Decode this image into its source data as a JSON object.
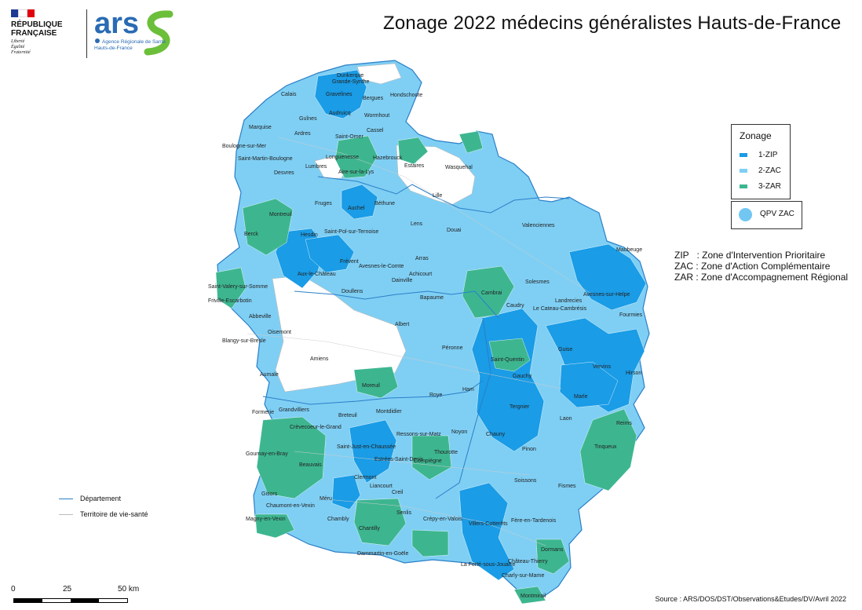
{
  "title": "Zonage 2022 médecins généralistes Hauts-de-France",
  "logos": {
    "republique": [
      "RÉPUBLIQUE",
      "FRANÇAISE"
    ],
    "motto": [
      "Liberté",
      "Égalité",
      "Fraternité"
    ],
    "ars": "ars",
    "ars_sub": [
      "Agence Régionale de Santé",
      "Hauts-de-France"
    ]
  },
  "legend": {
    "title": "Zonage",
    "items": [
      {
        "label": "1-ZIP",
        "color": "#1a9ce6"
      },
      {
        "label": "2-ZAC",
        "color": "#7fcff4"
      },
      {
        "label": "3-ZAR",
        "color": "#3db690"
      }
    ],
    "qpv": {
      "label": "QPV ZAC",
      "color": "#72c7f2"
    }
  },
  "definitions": [
    "ZIP   : Zone d'Intervention Prioritaire",
    "ZAC : Zone d'Action Complémentaire",
    "ZAR : Zone d'Accompagnement Régional"
  ],
  "line_legend": [
    {
      "label": "Département",
      "color": "#2b7fc7"
    },
    {
      "label": "Territoire de vie-santé",
      "color": "#bbbbbb"
    }
  ],
  "scale": {
    "labels": [
      "0",
      "25",
      "50 km"
    ]
  },
  "source": "Source : ARS/DOS/DST/Observations&Etudes/DV/Avril 2022",
  "towns": [
    "Dunkerque",
    "Grande-Synthe",
    "Calais",
    "Gravelines",
    "Bergues",
    "Hondschoote",
    "Guînes",
    "Audruicq",
    "Wormhout",
    "Marquise",
    "Ardres",
    "Saint-Omer",
    "Cassel",
    "Boulogne-sur-Mer",
    "Longuenesse",
    "Hazebrouck",
    "Saint-Martin-Boulogne",
    "Desvres",
    "Lumbres",
    "Aire-sur-la-Lys",
    "Estaires",
    "Wasquehal",
    "Lille",
    "Lens",
    "Béthune",
    "Montreuil",
    "Hesdin",
    "Berck",
    "Fruges",
    "Auchel",
    "Saint-Pol-sur-Ternoise",
    "Arras",
    "Douai",
    "Valenciennes",
    "Maubeuge",
    "Frévent",
    "Avesnes-le-Comte",
    "Aux-le-Château",
    "Doullens",
    "Dainville",
    "Achicourt",
    "Bapaume",
    "Cambrai",
    "Caudry",
    "Solesmes",
    "Le Cateau-Cambrésis",
    "Landrecies",
    "Avesnes-sur-Helpe",
    "Fourmies",
    "Saint-Valery-sur-Somme",
    "Friville-Escarbotin",
    "Abbeville",
    "Oisemont",
    "Blangy-sur-Bresle",
    "Albert",
    "Amiens",
    "Péronne",
    "Saint-Quentin",
    "Guise",
    "Vervins",
    "Hirson",
    "Aumale",
    "Moreuil",
    "Roye",
    "Ham",
    "Gauchy",
    "Marle",
    "Formerie",
    "Grandvilliers",
    "Breteuil",
    "Montdidier",
    "Tergnier",
    "Laon",
    "Crèvecoeur-le-Grand",
    "Saint-Just-en-Chaussée",
    "Ressons-sur-Matz",
    "Noyon",
    "Chauny",
    "Gournay-en-Bray",
    "Beauvais",
    "Estrées-Saint-Denis",
    "Thourotte",
    "Pinon",
    "Tinqueux",
    "Reims",
    "Compiègne",
    "Soissons",
    "Clermont",
    "Liancourt",
    "Creil",
    "Senlis",
    "Crépy-en-Valois",
    "Villers-Cotterêts",
    "Fère-en-Tardenois",
    "Fismes",
    "Gisors",
    "Chaumont-en-Vexin",
    "Méru",
    "Chambly",
    "Chantilly",
    "Magny-en-Vexin",
    "Dammartin-en-Goële",
    "La Ferté-sous-Jouarre",
    "Château-Thierry",
    "Charly-sur-Marne",
    "Dormans",
    "Montmirail"
  ]
}
